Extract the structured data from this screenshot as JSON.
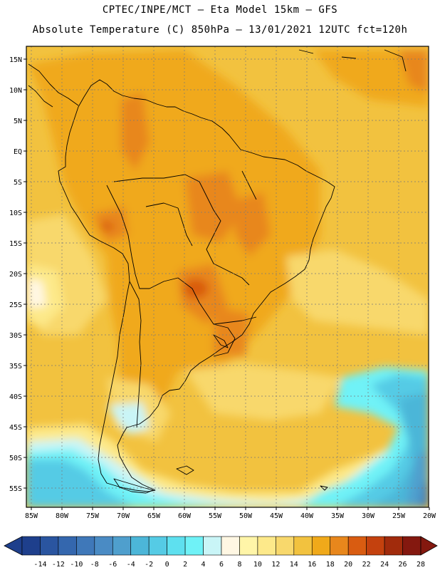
{
  "header": {
    "line1": "CPTEC/INPE/MCT –  Eta Model 15km – GFS",
    "line2": "Absolute Temperature (C) 850hPa – 13/01/2021 12UTC fct=120h"
  },
  "axes": {
    "lat_labels": [
      "15N",
      "10N",
      "5N",
      "EQ",
      "5S",
      "10S",
      "15S",
      "20S",
      "25S",
      "30S",
      "35S",
      "40S",
      "45S",
      "50S",
      "55S"
    ],
    "lon_labels": [
      "85W",
      "80W",
      "75W",
      "70W",
      "65W",
      "60W",
      "55W",
      "50W",
      "45W",
      "40W",
      "35W",
      "30W",
      "25W",
      "20W"
    ]
  },
  "colorbar": {
    "labels": [
      "-14",
      "-12",
      "-10",
      "-8",
      "-6",
      "-4",
      "-2",
      "0",
      "2",
      "4",
      "6",
      "8",
      "10",
      "12",
      "14",
      "16",
      "18",
      "20",
      "22",
      "24",
      "26",
      "28"
    ],
    "colors": [
      "#1e3f8c",
      "#2a55a0",
      "#3467ae",
      "#3f78b9",
      "#4a8bc4",
      "#4f9fcd",
      "#4cb6d8",
      "#55cbe5",
      "#5ee0ef",
      "#6ff2f7",
      "#c9f5f7",
      "#fff7e3",
      "#fff5a8",
      "#fde98a",
      "#f8d86c",
      "#f2c23f",
      "#f0a91a",
      "#e8871c",
      "#d95c11",
      "#c4410e",
      "#a12b0c",
      "#84180f"
    ]
  },
  "colors": {
    "land_dominant": "#f0a91a",
    "ocean_dominant": "#f2c23f",
    "cold_south": "#55cbe5"
  }
}
